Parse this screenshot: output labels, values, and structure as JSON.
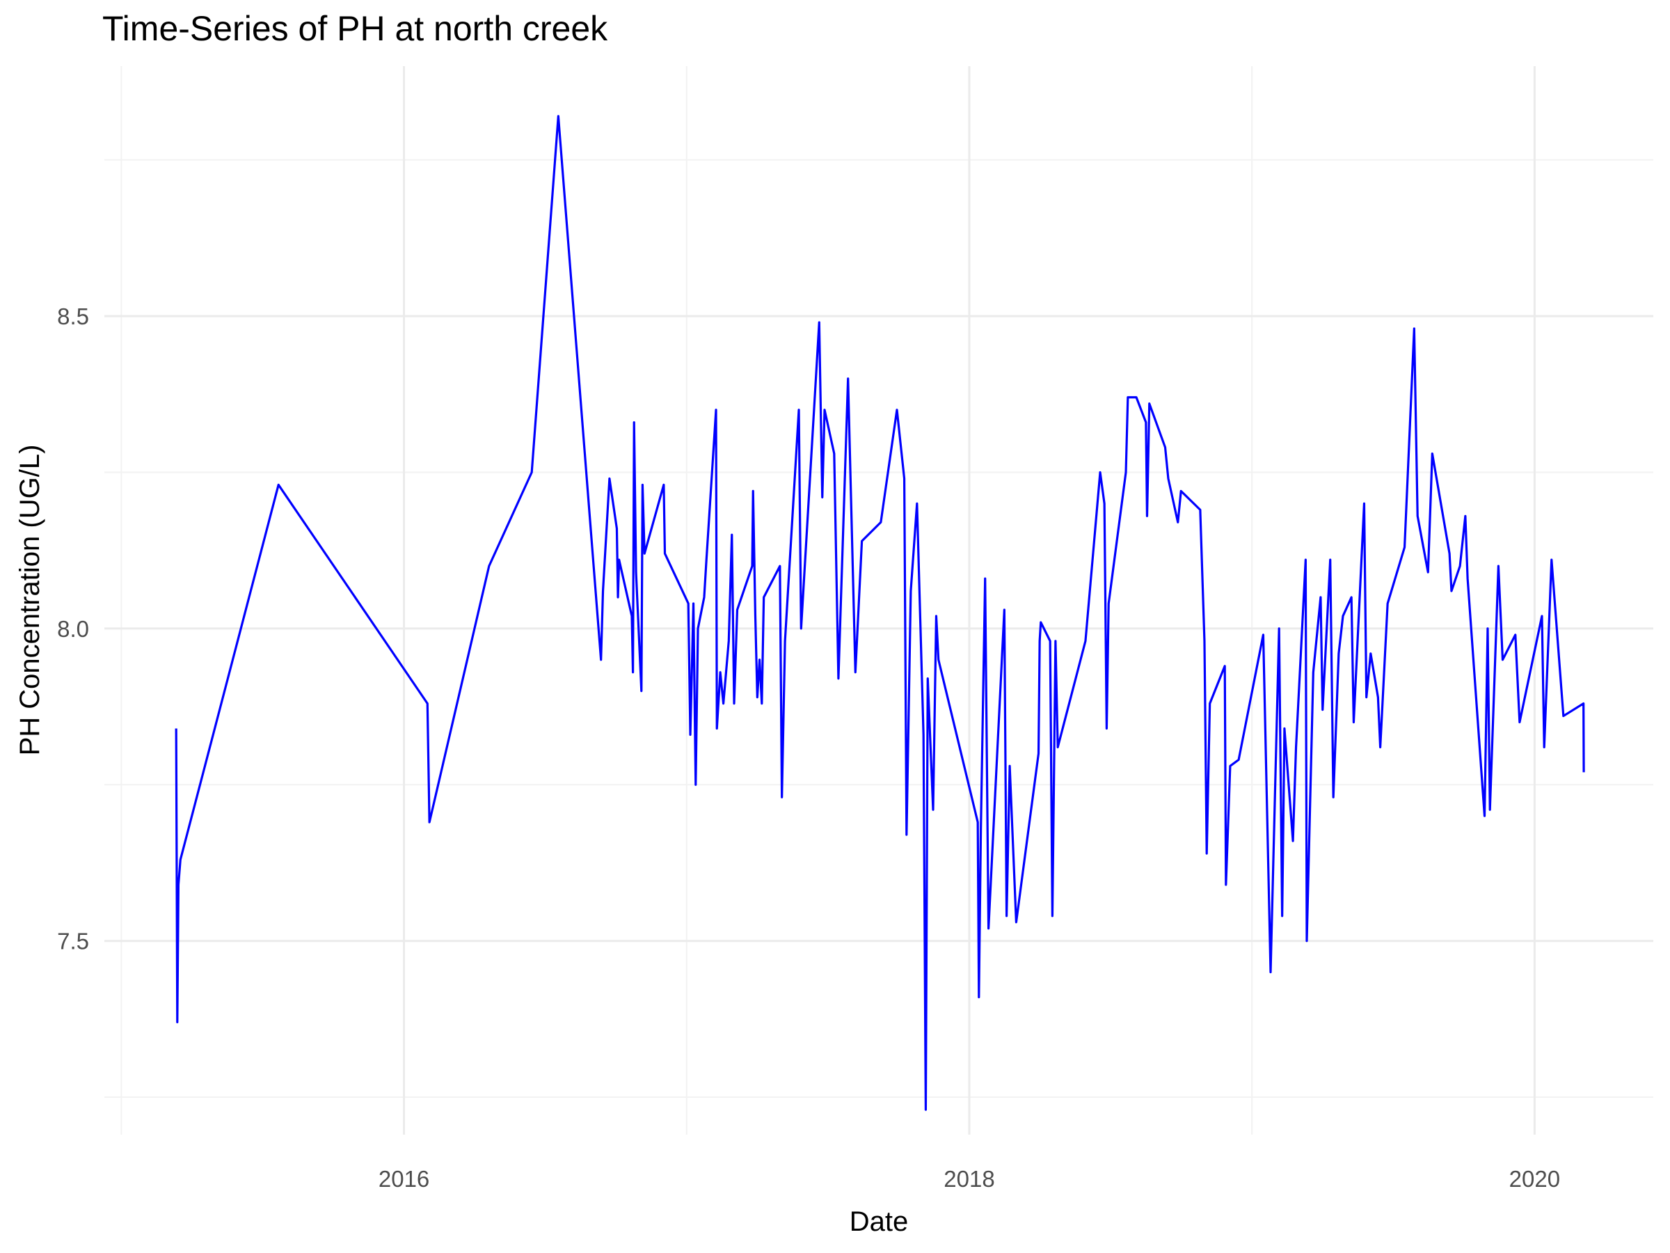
{
  "chart_data": {
    "type": "line",
    "title": "Time-Series of PH at north creek",
    "x_label": "Date",
    "y_label": "PH Concentration (UG/L)",
    "color": "#0000ff",
    "grid": true,
    "xlim": [
      2014.94,
      2020.42
    ],
    "xticks": [
      2016,
      2018,
      2020
    ],
    "ylim": [
      7.19,
      8.9
    ],
    "yticks": [
      7.5,
      8.0,
      8.5
    ],
    "x": [
      2015.194,
      2015.198,
      2015.202,
      2015.209,
      2015.556,
      2016.083,
      2016.09,
      2016.301,
      2016.452,
      2016.546,
      2016.697,
      2016.704,
      2016.727,
      2016.753,
      2016.757,
      2016.761,
      2016.806,
      2016.81,
      2016.814,
      2016.821,
      2016.84,
      2016.844,
      2016.851,
      2016.919,
      2016.923,
      2017.006,
      2017.013,
      2017.024,
      2017.032,
      2017.04,
      2017.062,
      2017.07,
      2017.104,
      2017.107,
      2017.119,
      2017.13,
      2017.149,
      2017.16,
      2017.168,
      2017.179,
      2017.232,
      2017.235,
      2017.243,
      2017.25,
      2017.258,
      2017.266,
      2017.273,
      2017.33,
      2017.337,
      2017.348,
      2017.397,
      2017.405,
      2017.469,
      2017.48,
      2017.488,
      2017.522,
      2017.537,
      2017.571,
      2017.597,
      2017.62,
      2017.687,
      2017.744,
      2017.77,
      2017.778,
      2017.793,
      2017.815,
      2017.838,
      2017.846,
      2017.853,
      2017.872,
      2017.883,
      2017.891,
      2018.03,
      2018.034,
      2018.041,
      2018.056,
      2018.068,
      2018.124,
      2018.132,
      2018.143,
      2018.166,
      2018.245,
      2018.249,
      2018.253,
      2018.286,
      2018.294,
      2018.305,
      2018.313,
      2018.411,
      2018.463,
      2018.478,
      2018.486,
      2018.493,
      2018.554,
      2018.561,
      2018.591,
      2018.625,
      2018.629,
      2018.637,
      2018.693,
      2018.704,
      2018.738,
      2018.749,
      2018.817,
      2018.832,
      2018.84,
      2018.851,
      2018.904,
      2018.908,
      2018.923,
      2018.953,
      2019.04,
      2019.066,
      2019.096,
      2019.107,
      2019.115,
      2019.145,
      2019.156,
      2019.19,
      2019.194,
      2019.217,
      2019.243,
      2019.25,
      2019.277,
      2019.288,
      2019.307,
      2019.322,
      2019.352,
      2019.36,
      2019.397,
      2019.405,
      2019.42,
      2019.446,
      2019.454,
      2019.48,
      2019.54,
      2019.574,
      2019.586,
      2019.623,
      2019.638,
      2019.699,
      2019.706,
      2019.736,
      2019.755,
      2019.763,
      2019.793,
      2019.823,
      2019.834,
      2019.842,
      2019.872,
      2019.887,
      2019.932,
      2019.947,
      2020.026,
      2020.034,
      2020.06,
      2020.102,
      2020.173,
      2020.174
    ],
    "values": [
      7.84,
      7.37,
      7.59,
      7.63,
      8.23,
      7.88,
      7.69,
      8.1,
      8.25,
      8.82,
      7.95,
      8.06,
      8.24,
      8.16,
      8.05,
      8.11,
      8.02,
      7.93,
      8.33,
      8.09,
      7.9,
      8.23,
      8.12,
      8.23,
      8.12,
      8.04,
      7.83,
      8.04,
      7.75,
      8.0,
      8.05,
      8.11,
      8.35,
      7.84,
      7.93,
      7.88,
      7.98,
      8.15,
      7.88,
      8.03,
      8.1,
      8.22,
      8.02,
      7.89,
      7.95,
      7.88,
      8.05,
      8.1,
      7.73,
      7.98,
      8.35,
      8.0,
      8.49,
      8.21,
      8.35,
      8.28,
      7.92,
      8.4,
      7.93,
      8.14,
      8.17,
      8.35,
      8.24,
      7.67,
      8.06,
      8.2,
      7.83,
      7.23,
      7.92,
      7.71,
      8.02,
      7.95,
      7.69,
      7.41,
      7.68,
      8.08,
      7.52,
      8.03,
      7.54,
      7.78,
      7.53,
      7.8,
      7.98,
      8.01,
      7.98,
      7.54,
      7.98,
      7.81,
      7.98,
      8.25,
      8.2,
      7.84,
      8.04,
      8.25,
      8.37,
      8.37,
      8.33,
      8.18,
      8.36,
      8.29,
      8.24,
      8.17,
      8.22,
      8.19,
      7.98,
      7.64,
      7.88,
      7.94,
      7.59,
      7.78,
      7.79,
      7.99,
      7.45,
      8.0,
      7.54,
      7.84,
      7.66,
      7.81,
      8.11,
      7.5,
      7.93,
      8.05,
      7.87,
      8.11,
      7.73,
      7.96,
      8.02,
      8.05,
      7.85,
      8.2,
      7.89,
      7.96,
      7.89,
      7.81,
      8.04,
      8.13,
      8.48,
      8.18,
      8.09,
      8.28,
      8.12,
      8.06,
      8.1,
      8.18,
      8.08,
      7.89,
      7.7,
      8.0,
      7.71,
      8.1,
      7.95,
      7.99,
      7.85,
      8.02,
      7.81,
      8.11,
      7.86,
      7.88,
      7.77
    ]
  }
}
